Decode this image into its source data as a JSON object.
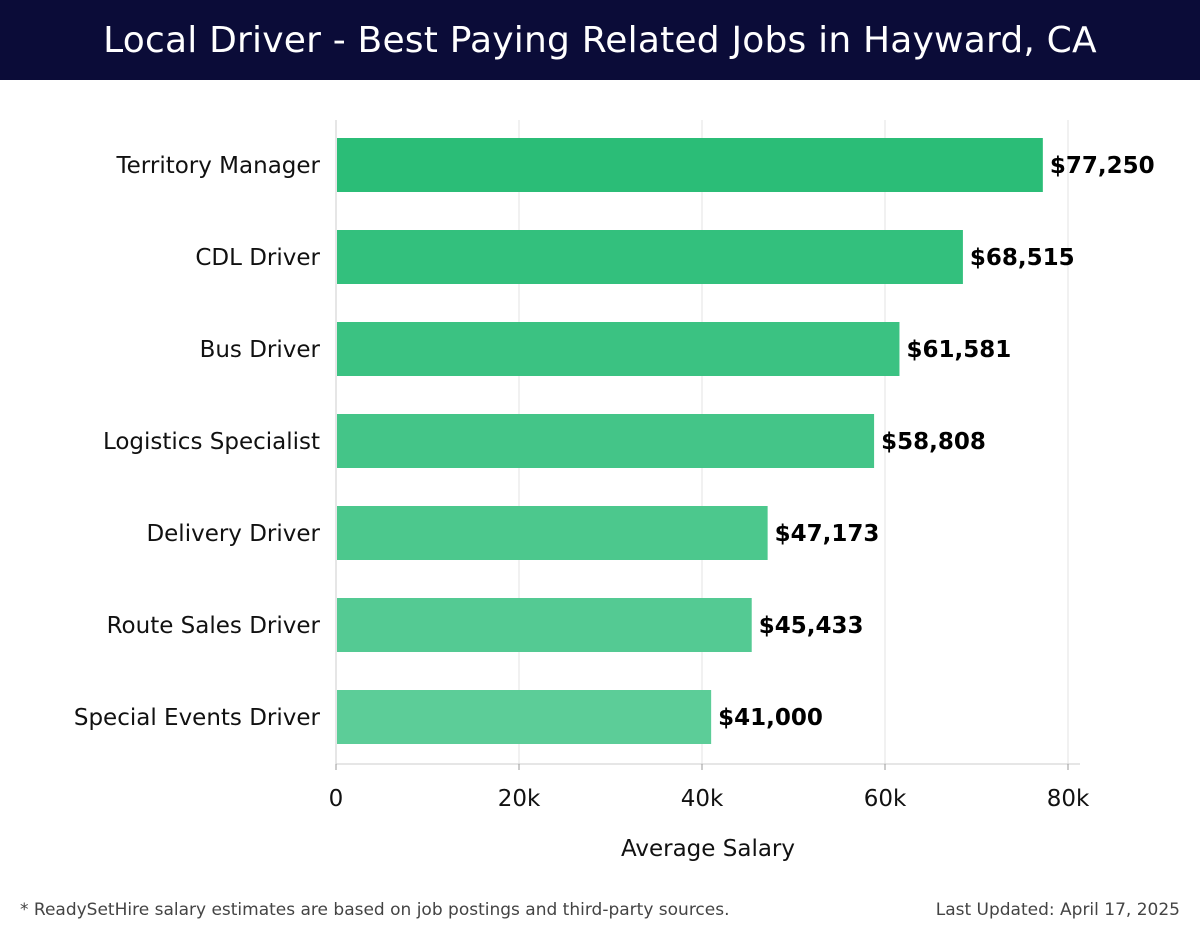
{
  "header": {
    "title": "Local Driver - Best Paying Related Jobs in Hayward, CA"
  },
  "footer": {
    "note": "* ReadySetHire salary estimates are based on job postings and third-party sources.",
    "updated": "Last Updated: April 17, 2025"
  },
  "chart_data": {
    "type": "bar",
    "orientation": "horizontal",
    "title": "Local Driver - Best Paying Related Jobs in Hayward, CA",
    "xlabel": "Average Salary",
    "ylabel": "",
    "categories": [
      "Territory Manager",
      "CDL Driver",
      "Bus Driver",
      "Logistics Specialist",
      "Delivery Driver",
      "Route Sales Driver",
      "Special Events Driver"
    ],
    "values": [
      77250,
      68515,
      61581,
      58808,
      47173,
      45433,
      41000
    ],
    "value_labels": [
      "$77,250",
      "$68,515",
      "$61,581",
      "$58,808",
      "$47,173",
      "$45,433",
      "$41,000"
    ],
    "xlim": [
      0,
      80000
    ],
    "xticks": [
      0,
      20000,
      40000,
      60000,
      80000
    ],
    "xtick_labels": [
      "0",
      "20k",
      "40k",
      "60k",
      "80k"
    ],
    "grid": true,
    "colors": {
      "bar_top": "#2bbd77",
      "bar_bottom": "#5ccd98",
      "grid": "#e3e3e3",
      "axis": "#cccccc",
      "header_bg": "#0b0c38"
    }
  }
}
